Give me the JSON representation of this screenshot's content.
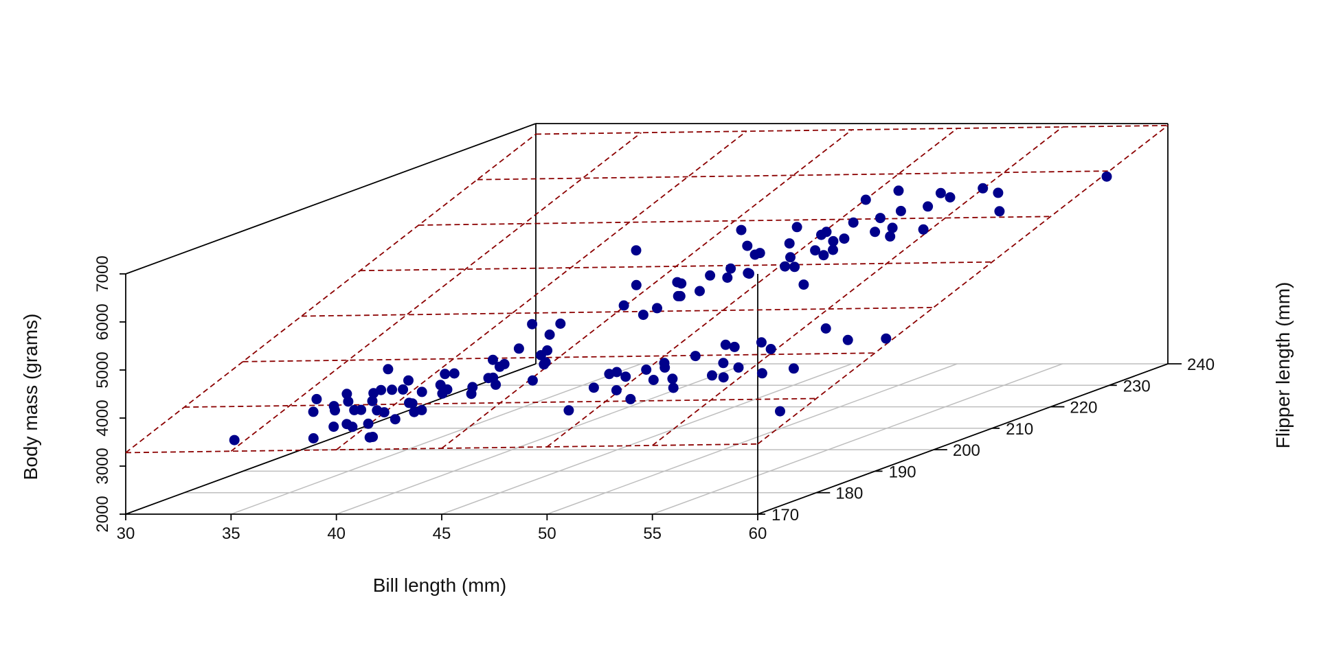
{
  "chart_data": {
    "type": "scatter",
    "projection": "3d",
    "xlabel": "Bill length (mm)",
    "ylabel": "Flipper length (mm)",
    "zlabel": "Body mass (grams)",
    "xlim": [
      30,
      60
    ],
    "ylim": [
      170,
      240
    ],
    "zlim": [
      2000,
      7000
    ],
    "x_ticks": [
      "30",
      "35",
      "40",
      "45",
      "50",
      "55",
      "60"
    ],
    "y_ticks": [
      "170",
      "180",
      "190",
      "200",
      "210",
      "220",
      "230",
      "240"
    ],
    "z_ticks": [
      "2000",
      "3000",
      "4000",
      "5000",
      "6000",
      "7000"
    ],
    "point_color": "#00008B",
    "plane_color": "#8B0000",
    "grid_color": "#BEBEBE",
    "regression_plane": {
      "intercept": -5400,
      "bill_coef": 6,
      "flipper_coef": 50
    },
    "series": [
      {
        "x": [
          32.1,
          33.5,
          33.9,
          34.1,
          34.6,
          35.0,
          35.2,
          35.5,
          35.7,
          36.0,
          36.2,
          36.4,
          36.6,
          36.7,
          36.8,
          37.0,
          37.2,
          37.3,
          37.6,
          37.7,
          37.8,
          37.9,
          38.1,
          38.2,
          38.5,
          38.6,
          38.8,
          38.9,
          39.0,
          39.1,
          39.2,
          39.5,
          39.6,
          39.7,
          39.8,
          40.2,
          40.3,
          40.6,
          40.8,
          40.9,
          41.1,
          41.3,
          41.4,
          41.5,
          41.6,
          42.0,
          42.2,
          42.5,
          42.7,
          42.9,
          43.2,
          44.1,
          45.8,
          46.0,
          46.1,
          46.3,
          46.5,
          46.9,
          47.2,
          47.5,
          47.8,
          48.1,
          48.4,
          48.7,
          49.0,
          49.3,
          49.6,
          50.0,
          50.3,
          50.6,
          51.0,
          51.3,
          51.7,
          52.0,
          52.7,
          53.5,
          54.2,
          55.1,
          55.8,
          58.0,
          40.9,
          42.8,
          44.5,
          45.1,
          45.5,
          46.2,
          46.4,
          46.6,
          46.8,
          47.3,
          47.6,
          48.2,
          48.5,
          48.8,
          49.1,
          49.4,
          49.8,
          50.2,
          50.5,
          50.8,
          51.1,
          51.5,
          52.1,
          52.5,
          53.0,
          53.4,
          54.0,
          55.0,
          55.9,
          59.6,
          40.6,
          42.0,
          43.3,
          44.0,
          45.2,
          45.6,
          46.2,
          46.8,
          47.4,
          48.0,
          48.4,
          49.0,
          49.5,
          50.0,
          50.5,
          51.1,
          52.0,
          39.0,
          44.2
        ],
        "y": [
          181,
          190,
          188,
          193,
          189,
          190,
          187,
          195,
          185,
          192,
          190,
          186,
          184,
          188,
          191,
          185,
          187,
          192,
          190,
          181,
          174,
          183,
          185,
          195,
          190,
          188,
          180,
          184,
          186,
          191,
          193,
          178,
          186,
          190,
          184,
          196,
          187,
          199,
          195,
          190,
          192,
          194,
          188,
          201,
          191,
          190,
          197,
          197,
          196,
          195,
          192,
          210,
          197,
          195,
          192,
          187,
          196,
          193,
          197,
          199,
          198,
          195,
          190,
          200,
          195,
          203,
          193,
          202,
          199,
          196,
          203,
          198,
          194,
          201,
          197,
          205,
          197,
          203,
          207,
          181,
          205,
          209,
          212,
          210,
          214,
          215,
          209,
          213,
          217,
          214,
          220,
          218,
          216,
          222,
          219,
          221,
          223,
          220,
          217,
          224,
          222,
          225,
          221,
          226,
          228,
          222,
          230,
          229,
          226,
          231,
          219,
          214,
          217,
          208,
          210,
          220,
          220,
          216,
          222,
          224,
          218,
          228,
          219,
          230,
          212,
          225,
          230,
          207,
          224
        ],
        "z": [
          3050,
          3500,
          3325,
          3475,
          3400,
          3450,
          3400,
          3900,
          3150,
          3600,
          3625,
          3450,
          3250,
          3550,
          3650,
          3500,
          3400,
          3800,
          3700,
          3325,
          3400,
          3300,
          3450,
          3800,
          3650,
          3500,
          3150,
          3350,
          3600,
          3750,
          3900,
          3250,
          3450,
          3700,
          3500,
          4050,
          3750,
          4150,
          3950,
          3750,
          3850,
          4050,
          3700,
          4350,
          3900,
          3800,
          4100,
          4200,
          4000,
          4000,
          3800,
          4500,
          3750,
          3800,
          3650,
          3400,
          3700,
          3550,
          3800,
          3850,
          3800,
          3675,
          3500,
          3950,
          3700,
          4050,
          3600,
          4050,
          3850,
          3725,
          4100,
          3800,
          3775,
          4050,
          3725,
          4300,
          3825,
          4150,
          4000,
          3650,
          4400,
          4600,
          4950,
          4750,
          5000,
          5100,
          4900,
          5000,
          5300,
          5050,
          5400,
          5200,
          5100,
          5550,
          5300,
          5400,
          5700,
          5500,
          5400,
          5750,
          5550,
          5850,
          5500,
          5900,
          6000,
          5600,
          6100,
          6050,
          5800,
          6300,
          5300,
          4800,
          4700,
          4450,
          4750,
          5350,
          5200,
          4950,
          5650,
          5400,
          5000,
          5950,
          5200,
          6050,
          4900,
          5500,
          6000,
          4300,
          5500
        ]
      }
    ]
  }
}
